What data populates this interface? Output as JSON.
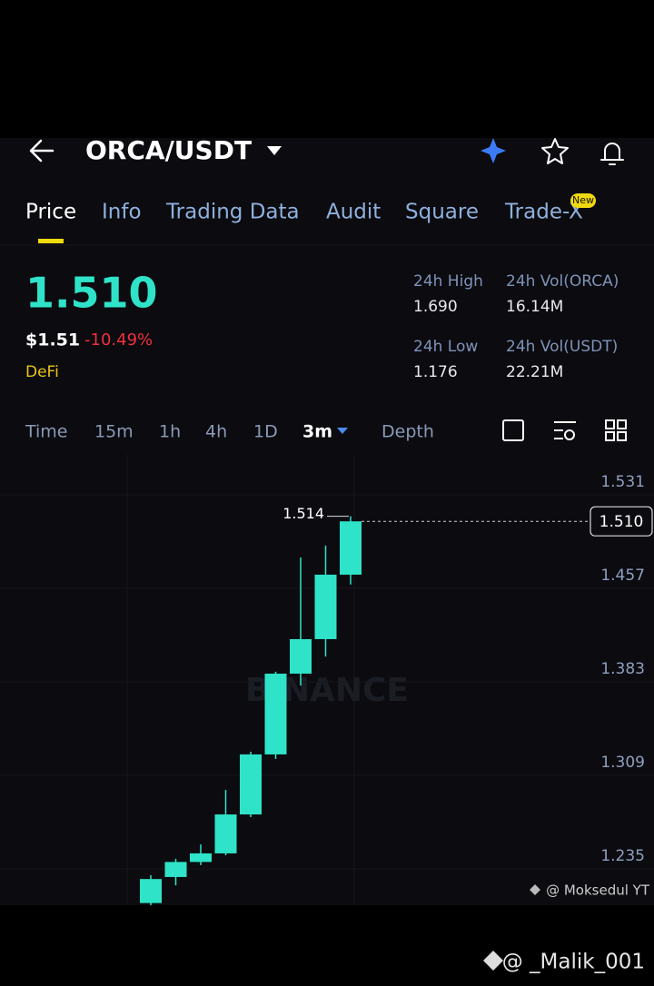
{
  "header": {
    "pair": "ORCA/USDT"
  },
  "tabs": [
    "Price",
    "Info",
    "Trading Data",
    "Audit",
    "Square",
    "Trade-X"
  ],
  "new_badge": "New",
  "price": {
    "last": "1.510",
    "usd": "$1.51",
    "change": "-10.49%",
    "tag": "DeFi"
  },
  "stats": [
    {
      "label": "24h High",
      "value": "1.690"
    },
    {
      "label": "24h Vol(ORCA)",
      "value": "16.14M"
    },
    {
      "label": "24h Low",
      "value": "1.176"
    },
    {
      "label": "24h Vol(USDT)",
      "value": "22.21M"
    }
  ],
  "intervals": [
    "Time",
    "15m",
    "1h",
    "4h",
    "1D",
    "3m",
    "Depth"
  ],
  "chart_data": {
    "type": "candlestick",
    "watermark": "BINANCE",
    "up_color": "#2fe3c8",
    "ylim": [
      1.2063,
      1.5633
    ],
    "yticks": [
      1.235,
      1.309,
      1.383,
      1.457,
      1.531
    ],
    "grid": true,
    "last_price": {
      "value": 1.51,
      "label": "1.510"
    },
    "high_marker": 1.514,
    "candles": [
      {
        "open": 1.208,
        "high": 1.23,
        "low": 1.205,
        "close": 1.227
      },
      {
        "open": 1.2286,
        "high": 1.243,
        "low": 1.222,
        "close": 1.2405
      },
      {
        "open": 1.2405,
        "high": 1.2544,
        "low": 1.238,
        "close": 1.2473
      },
      {
        "open": 1.2473,
        "high": 1.2975,
        "low": 1.2458,
        "close": 1.2781
      },
      {
        "open": 1.2781,
        "high": 1.3277,
        "low": 1.276,
        "close": 1.3256
      },
      {
        "open": 1.3256,
        "high": 1.391,
        "low": 1.322,
        "close": 1.3895
      },
      {
        "open": 1.3895,
        "high": 1.4814,
        "low": 1.38,
        "close": 1.4168
      },
      {
        "open": 1.4168,
        "high": 1.4908,
        "low": 1.403,
        "close": 1.4678
      },
      {
        "open": 1.4678,
        "high": 1.514,
        "low": 1.46,
        "close": 1.51
      }
    ]
  },
  "credits": [
    "@ Moksedul YT",
    "@ _Malik_001"
  ]
}
